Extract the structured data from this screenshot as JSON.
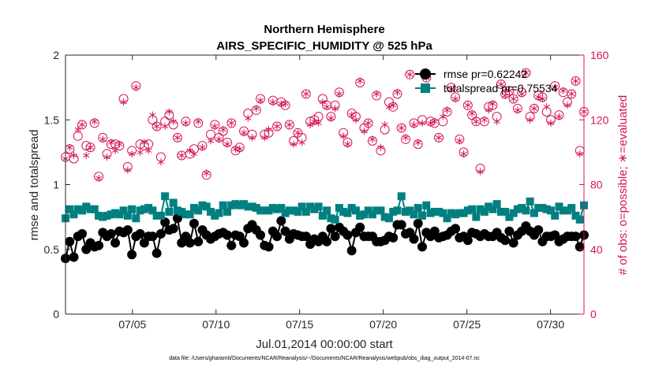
{
  "chart_data": {
    "type": "line",
    "title": [
      "Northern Hemisphere",
      "AIRS_SPECIFIC_HUMIDITY @ 525 hPa"
    ],
    "xlabel": "Jul.01,2014 00:00:00 start",
    "ylabel": "rmse and totalspread",
    "ylabel_right": "# of obs: o=possible; ∗=evaluated",
    "footer": "data file: /Users/gharamti/Documents/NCAR/Reanalysis/~/Documents/NCAR/Reanalysis/webpub/obs_diag_output_2014-07.nc",
    "xlim": [
      1.0,
      32.0
    ],
    "ylim": [
      0,
      2
    ],
    "ylim_right": [
      0,
      160
    ],
    "x_ticks": [
      5,
      10,
      15,
      20,
      25,
      30
    ],
    "x_tick_labels": [
      "07/05",
      "07/10",
      "07/15",
      "07/20",
      "07/25",
      "07/30"
    ],
    "y_ticks": [
      0,
      0.5,
      1,
      1.5,
      2
    ],
    "y_tick_labels": [
      "0",
      "0.5",
      "1",
      "1.5",
      "2"
    ],
    "y_right_ticks": [
      0,
      40,
      80,
      120,
      160
    ],
    "y_right_tick_labels": [
      "0",
      "40",
      "80",
      "120",
      "160"
    ],
    "legend_position": "top-right",
    "colors": {
      "rmse": "#000000",
      "totalspread": "#008080",
      "obs": "#d4145a",
      "axis": "#262626"
    },
    "series": [
      {
        "name": "rmse",
        "legend": "rmse pr=0.62242",
        "marker": "circle",
        "values": [
          0.43,
          0.56,
          0.44,
          0.6,
          0.62,
          0.5,
          0.55,
          0.52,
          0.53,
          0.63,
          0.6,
          0.62,
          0.55,
          0.64,
          0.63,
          0.65,
          0.46,
          0.6,
          0.62,
          0.55,
          0.6,
          0.6,
          0.47,
          0.62,
          0.71,
          0.65,
          0.66,
          0.74,
          0.55,
          0.6,
          0.55,
          0.7,
          0.56,
          0.65,
          0.61,
          0.58,
          0.6,
          0.62,
          0.63,
          0.61,
          0.53,
          0.61,
          0.6,
          0.55,
          0.66,
          0.69,
          0.65,
          0.61,
          0.53,
          0.52,
          0.64,
          0.6,
          0.72,
          0.64,
          0.58,
          0.62,
          0.61,
          0.6,
          0.6,
          0.54,
          0.58,
          0.56,
          0.6,
          0.56,
          0.66,
          0.6,
          0.67,
          0.64,
          0.61,
          0.49,
          0.63,
          0.67,
          0.6,
          0.6,
          0.6,
          0.56,
          0.56,
          0.57,
          0.6,
          0.59,
          0.69,
          0.69,
          0.62,
          0.63,
          0.58,
          0.7,
          0.52,
          0.63,
          0.6,
          0.64,
          0.59,
          0.6,
          0.61,
          0.64,
          0.66,
          0.59,
          0.6,
          0.57,
          0.63,
          0.62,
          0.6,
          0.62,
          0.6,
          0.6,
          0.63,
          0.59,
          0.57,
          0.64,
          0.55,
          0.61,
          0.64,
          0.68,
          0.64,
          0.61,
          0.65,
          0.56,
          0.6,
          0.6,
          0.61,
          0.56,
          0.58,
          0.6,
          0.6,
          0.6,
          0.52,
          0.61
        ]
      },
      {
        "name": "totalspread",
        "legend": "totalspread pr=0.75534",
        "marker": "square",
        "values": [
          0.74,
          0.81,
          0.77,
          0.81,
          0.8,
          0.83,
          0.81,
          0.81,
          0.76,
          0.75,
          0.76,
          0.77,
          0.78,
          0.77,
          0.8,
          0.76,
          0.81,
          0.74,
          0.8,
          0.81,
          0.82,
          0.8,
          0.76,
          0.76,
          0.91,
          0.79,
          0.86,
          0.8,
          0.79,
          0.77,
          0.77,
          0.82,
          0.8,
          0.84,
          0.83,
          0.79,
          0.76,
          0.78,
          0.84,
          0.79,
          0.84,
          0.85,
          0.84,
          0.85,
          0.83,
          0.83,
          0.82,
          0.8,
          0.8,
          0.8,
          0.82,
          0.81,
          0.82,
          0.78,
          0.8,
          0.8,
          0.79,
          0.83,
          0.79,
          0.83,
          0.81,
          0.83,
          0.76,
          0.8,
          0.74,
          0.73,
          0.82,
          0.79,
          0.78,
          0.82,
          0.8,
          0.76,
          0.77,
          0.8,
          0.77,
          0.8,
          0.8,
          0.75,
          0.74,
          0.79,
          0.8,
          0.91,
          0.79,
          0.8,
          0.77,
          0.82,
          0.76,
          0.84,
          0.78,
          0.79,
          0.79,
          0.78,
          0.74,
          0.78,
          0.77,
          0.78,
          0.78,
          0.8,
          0.81,
          0.75,
          0.81,
          0.79,
          0.83,
          0.81,
          0.85,
          0.79,
          0.79,
          0.75,
          0.78,
          0.81,
          0.82,
          0.8,
          0.87,
          0.78,
          0.82,
          0.82,
          0.81,
          0.8,
          0.76,
          0.83,
          0.8,
          0.8,
          0.82,
          0.76,
          0.73,
          0.84
        ]
      },
      {
        "name": "obs_possible",
        "marker": "open-circle",
        "axis": "right",
        "values": [
          97,
          102,
          96,
          110,
          117,
          104,
          103,
          118,
          85,
          109,
          99,
          105,
          105,
          104,
          133,
          91,
          101,
          141,
          105,
          104,
          105,
          120,
          116,
          97,
          119,
          123,
          117,
          109,
          98,
          119,
          99,
          102,
          118,
          104,
          86,
          111,
          117,
          109,
          113,
          106,
          118,
          101,
          103,
          113,
          124,
          111,
          126,
          133,
          111,
          112,
          132,
          116,
          131,
          129,
          117,
          107,
          112,
          109,
          136,
          119,
          120,
          122,
          133,
          129,
          122,
          129,
          137,
          112,
          106,
          124,
          122,
          143,
          115,
          118,
          107,
          135,
          101,
          114,
          131,
          128,
          136,
          115,
          108,
          148,
          118,
          105,
          120,
          146,
          119,
          118,
          109,
          119,
          125,
          140,
          134,
          108,
          100,
          129,
          123,
          119,
          90,
          119,
          128,
          129,
          122,
          142,
          136,
          138,
          133,
          127,
          137,
          149,
          122,
          127,
          135,
          134,
          125,
          120,
          141,
          123,
          137,
          131,
          136,
          144,
          101,
          125
        ]
      },
      {
        "name": "obs_evaluated",
        "marker": "asterisk",
        "axis": "right",
        "values": [
          96,
          103,
          98,
          114,
          117,
          98,
          103,
          119,
          84,
          108,
          97,
          106,
          101,
          105,
          131,
          89,
          99,
          140,
          100,
          106,
          101,
          123,
          116,
          94,
          116,
          125,
          119,
          109,
          98,
          118,
          101,
          99,
          119,
          103,
          87,
          107,
          116,
          108,
          114,
          105,
          118,
          102,
          102,
          112,
          121,
          109,
          127,
          132,
          109,
          114,
          131,
          116,
          130,
          130,
          117,
          105,
          112,
          106,
          136,
          117,
          119,
          118,
          131,
          128,
          121,
          127,
          136,
          110,
          105,
          123,
          120,
          144,
          113,
          118,
          108,
          136,
          103,
          117,
          128,
          129,
          137,
          115,
          109,
          148,
          117,
          106,
          118,
          146,
          118,
          119,
          109,
          122,
          126,
          139,
          133,
          107,
          99,
          129,
          124,
          119,
          88,
          120,
          126,
          130,
          119,
          142,
          135,
          138,
          133,
          126,
          136,
          149,
          120,
          127,
          134,
          133,
          128,
          118,
          140,
          122,
          138,
          129,
          136,
          144,
          99,
          125
        ]
      }
    ]
  }
}
